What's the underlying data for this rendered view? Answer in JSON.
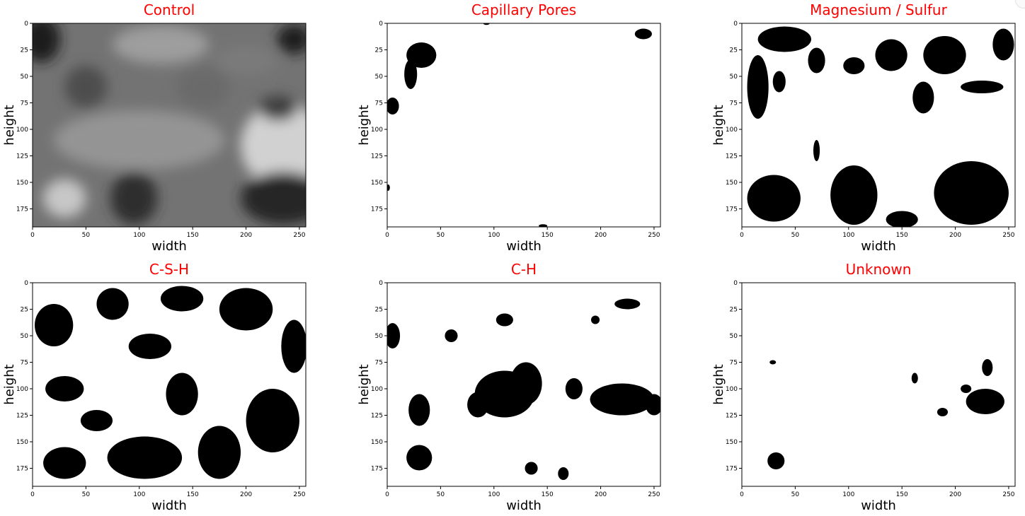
{
  "figure": {
    "title_color": "#ff0000",
    "colormap": "gray",
    "panels": [
      {
        "title": "Control",
        "xlabel": "width",
        "ylabel": "height",
        "kind": "grayscale"
      },
      {
        "title": "Capillary Pores",
        "xlabel": "width",
        "ylabel": "height",
        "kind": "binary"
      },
      {
        "title": "Magnesium / Sulfur",
        "xlabel": "width",
        "ylabel": "height",
        "kind": "binary"
      },
      {
        "title": "C-S-H",
        "xlabel": "width",
        "ylabel": "height",
        "kind": "binary"
      },
      {
        "title": "C-H",
        "xlabel": "width",
        "ylabel": "height",
        "kind": "binary"
      },
      {
        "title": "Unknown",
        "xlabel": "width",
        "ylabel": "height",
        "kind": "binary"
      }
    ]
  },
  "chart_data": [
    {
      "type": "heatmap",
      "title": "Control",
      "xlabel": "width",
      "ylabel": "height",
      "xlim": [
        0,
        256
      ],
      "ylim": [
        192,
        0
      ],
      "xticks": [
        0,
        50,
        100,
        150,
        200,
        250
      ],
      "yticks": [
        0,
        25,
        50,
        75,
        100,
        125,
        150,
        175
      ],
      "colormap": "gray",
      "blobs": [
        {
          "cx": 8,
          "cy": 15,
          "rx": 18,
          "ry": 22,
          "value": 0.12
        },
        {
          "cx": 120,
          "cy": 20,
          "rx": 45,
          "ry": 18,
          "value": 0.62
        },
        {
          "cx": 200,
          "cy": 35,
          "rx": 30,
          "ry": 14,
          "value": 0.48
        },
        {
          "cx": 245,
          "cy": 15,
          "rx": 16,
          "ry": 14,
          "value": 0.1
        },
        {
          "cx": 100,
          "cy": 110,
          "rx": 80,
          "ry": 28,
          "value": 0.58
        },
        {
          "cx": 235,
          "cy": 115,
          "rx": 40,
          "ry": 40,
          "value": 0.82
        },
        {
          "cx": 230,
          "cy": 80,
          "rx": 18,
          "ry": 12,
          "value": 0.25
        },
        {
          "cx": 95,
          "cy": 165,
          "rx": 22,
          "ry": 25,
          "value": 0.18
        },
        {
          "cx": 235,
          "cy": 165,
          "rx": 40,
          "ry": 25,
          "value": 0.15
        },
        {
          "cx": 30,
          "cy": 165,
          "rx": 20,
          "ry": 18,
          "value": 0.78
        },
        {
          "cx": 160,
          "cy": 60,
          "rx": 25,
          "ry": 20,
          "value": 0.42
        },
        {
          "cx": 50,
          "cy": 60,
          "rx": 20,
          "ry": 20,
          "value": 0.3
        }
      ]
    },
    {
      "type": "heatmap",
      "title": "Capillary Pores",
      "xlabel": "width",
      "ylabel": "height",
      "xlim": [
        0,
        256
      ],
      "ylim": [
        192,
        0
      ],
      "xticks": [
        0,
        50,
        100,
        150,
        200,
        250
      ],
      "yticks": [
        0,
        25,
        50,
        75,
        100,
        125,
        150,
        175
      ],
      "blobs": [
        {
          "cx": 32,
          "cy": 30,
          "rx": 14,
          "ry": 12
        },
        {
          "cx": 22,
          "cy": 48,
          "rx": 6,
          "ry": 14
        },
        {
          "cx": 5,
          "cy": 78,
          "rx": 6,
          "ry": 8
        },
        {
          "cx": 240,
          "cy": 10,
          "rx": 8,
          "ry": 5
        },
        {
          "cx": 93,
          "cy": 0,
          "rx": 3,
          "ry": 1.5
        },
        {
          "cx": 1,
          "cy": 155,
          "rx": 1.5,
          "ry": 3
        },
        {
          "cx": 146,
          "cy": 191,
          "rx": 4,
          "ry": 1.5
        }
      ]
    },
    {
      "type": "heatmap",
      "title": "Magnesium / Sulfur",
      "xlabel": "width",
      "ylabel": "height",
      "xlim": [
        0,
        256
      ],
      "ylim": [
        192,
        0
      ],
      "xticks": [
        0,
        50,
        100,
        150,
        200,
        250
      ],
      "yticks": [
        0,
        25,
        50,
        75,
        100,
        125,
        150,
        175
      ],
      "blobs": [
        {
          "cx": 40,
          "cy": 15,
          "rx": 25,
          "ry": 12
        },
        {
          "cx": 15,
          "cy": 60,
          "rx": 10,
          "ry": 30
        },
        {
          "cx": 35,
          "cy": 55,
          "rx": 6,
          "ry": 10
        },
        {
          "cx": 70,
          "cy": 35,
          "rx": 8,
          "ry": 12
        },
        {
          "cx": 105,
          "cy": 40,
          "rx": 10,
          "ry": 8
        },
        {
          "cx": 140,
          "cy": 30,
          "rx": 15,
          "ry": 15
        },
        {
          "cx": 190,
          "cy": 30,
          "rx": 20,
          "ry": 18
        },
        {
          "cx": 245,
          "cy": 20,
          "rx": 10,
          "ry": 15
        },
        {
          "cx": 225,
          "cy": 60,
          "rx": 20,
          "ry": 6
        },
        {
          "cx": 170,
          "cy": 70,
          "rx": 10,
          "ry": 15
        },
        {
          "cx": 30,
          "cy": 165,
          "rx": 25,
          "ry": 22
        },
        {
          "cx": 105,
          "cy": 162,
          "rx": 22,
          "ry": 28
        },
        {
          "cx": 150,
          "cy": 185,
          "rx": 15,
          "ry": 8
        },
        {
          "cx": 215,
          "cy": 160,
          "rx": 35,
          "ry": 30
        },
        {
          "cx": 70,
          "cy": 120,
          "rx": 3,
          "ry": 10
        }
      ]
    },
    {
      "type": "heatmap",
      "title": "C-S-H",
      "xlabel": "width",
      "ylabel": "height",
      "xlim": [
        0,
        256
      ],
      "ylim": [
        192,
        0
      ],
      "xticks": [
        0,
        50,
        100,
        150,
        200,
        250
      ],
      "yticks": [
        0,
        25,
        50,
        75,
        100,
        125,
        150,
        175
      ],
      "blobs": [
        {
          "cx": 20,
          "cy": 40,
          "rx": 18,
          "ry": 20
        },
        {
          "cx": 75,
          "cy": 20,
          "rx": 15,
          "ry": 15
        },
        {
          "cx": 140,
          "cy": 15,
          "rx": 20,
          "ry": 12
        },
        {
          "cx": 200,
          "cy": 25,
          "rx": 25,
          "ry": 20
        },
        {
          "cx": 245,
          "cy": 60,
          "rx": 12,
          "ry": 25
        },
        {
          "cx": 110,
          "cy": 60,
          "rx": 20,
          "ry": 12
        },
        {
          "cx": 30,
          "cy": 100,
          "rx": 18,
          "ry": 12
        },
        {
          "cx": 140,
          "cy": 105,
          "rx": 15,
          "ry": 20
        },
        {
          "cx": 225,
          "cy": 130,
          "rx": 25,
          "ry": 30
        },
        {
          "cx": 105,
          "cy": 165,
          "rx": 35,
          "ry": 20
        },
        {
          "cx": 30,
          "cy": 170,
          "rx": 20,
          "ry": 15
        },
        {
          "cx": 175,
          "cy": 160,
          "rx": 20,
          "ry": 25
        },
        {
          "cx": 60,
          "cy": 130,
          "rx": 15,
          "ry": 10
        }
      ]
    },
    {
      "type": "heatmap",
      "title": "C-H",
      "xlabel": "width",
      "ylabel": "height",
      "xlim": [
        0,
        256
      ],
      "ylim": [
        192,
        0
      ],
      "xticks": [
        0,
        50,
        100,
        150,
        200,
        250
      ],
      "yticks": [
        0,
        25,
        50,
        75,
        100,
        125,
        150,
        175
      ],
      "blobs": [
        {
          "cx": 5,
          "cy": 50,
          "rx": 7,
          "ry": 12
        },
        {
          "cx": 110,
          "cy": 105,
          "rx": 28,
          "ry": 22
        },
        {
          "cx": 85,
          "cy": 115,
          "rx": 10,
          "ry": 12
        },
        {
          "cx": 130,
          "cy": 95,
          "rx": 15,
          "ry": 20
        },
        {
          "cx": 30,
          "cy": 120,
          "rx": 10,
          "ry": 15
        },
        {
          "cx": 110,
          "cy": 35,
          "rx": 8,
          "ry": 6
        },
        {
          "cx": 225,
          "cy": 20,
          "rx": 12,
          "ry": 5
        },
        {
          "cx": 195,
          "cy": 35,
          "rx": 4,
          "ry": 4
        },
        {
          "cx": 60,
          "cy": 50,
          "rx": 6,
          "ry": 6
        },
        {
          "cx": 30,
          "cy": 165,
          "rx": 12,
          "ry": 12
        },
        {
          "cx": 220,
          "cy": 110,
          "rx": 30,
          "ry": 15
        },
        {
          "cx": 250,
          "cy": 115,
          "rx": 8,
          "ry": 10
        },
        {
          "cx": 175,
          "cy": 100,
          "rx": 8,
          "ry": 10
        },
        {
          "cx": 165,
          "cy": 180,
          "rx": 5,
          "ry": 6
        },
        {
          "cx": 135,
          "cy": 175,
          "rx": 6,
          "ry": 6
        }
      ]
    },
    {
      "type": "heatmap",
      "title": "Unknown",
      "xlabel": "width",
      "ylabel": "height",
      "xlim": [
        0,
        256
      ],
      "ylim": [
        192,
        0
      ],
      "xticks": [
        0,
        50,
        100,
        150,
        200,
        250
      ],
      "yticks": [
        0,
        25,
        50,
        75,
        100,
        125,
        150,
        175
      ],
      "blobs": [
        {
          "cx": 29,
          "cy": 75,
          "rx": 3,
          "ry": 2
        },
        {
          "cx": 32,
          "cy": 168,
          "rx": 8,
          "ry": 8
        },
        {
          "cx": 162,
          "cy": 90,
          "rx": 3,
          "ry": 5
        },
        {
          "cx": 188,
          "cy": 122,
          "rx": 5,
          "ry": 4
        },
        {
          "cx": 228,
          "cy": 112,
          "rx": 18,
          "ry": 12
        },
        {
          "cx": 230,
          "cy": 80,
          "rx": 5,
          "ry": 8
        },
        {
          "cx": 210,
          "cy": 100,
          "rx": 5,
          "ry": 4
        }
      ]
    }
  ]
}
